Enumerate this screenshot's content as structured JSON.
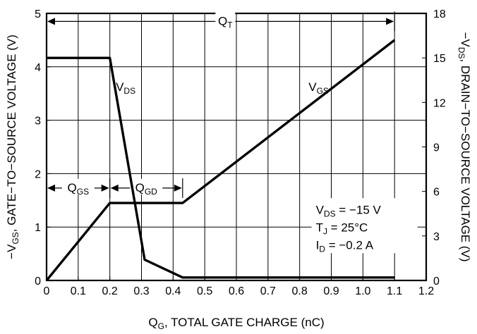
{
  "chart_data": {
    "type": "line",
    "xlabel": {
      "main": "Q",
      "sub": "G",
      "rest": ", TOTAL GATE CHARGE (nC)"
    },
    "ylabel_left": {
      "pre": "−V",
      "sub": "GS",
      "rest": ", GATE−TO−SOURCE VOLTAGE (V)"
    },
    "ylabel_right": {
      "pre": "−V",
      "sub": "DS",
      "rest": ", DRAIN−TO−SOURCE VOLTAGE (V)"
    },
    "xlim": [
      0,
      1.2
    ],
    "ylim_left": [
      0,
      5
    ],
    "ylim_right": [
      0,
      18
    ],
    "x_ticks": [
      "0",
      "0.1",
      "0.2",
      "0.3",
      "0.4",
      "0.5",
      "0.6",
      "0.7",
      "0.8",
      "0.9",
      "1.0",
      "1.1",
      "1.2"
    ],
    "x_tick_values": [
      0,
      0.1,
      0.2,
      0.3,
      0.4,
      0.5,
      0.6,
      0.7,
      0.8,
      0.9,
      1.0,
      1.1,
      1.2
    ],
    "y_left_ticks": [
      "0",
      "1",
      "2",
      "3",
      "4",
      "5"
    ],
    "y_left_tick_values": [
      0,
      1,
      2,
      3,
      4,
      5
    ],
    "y_right_ticks": [
      "0",
      "3",
      "6",
      "9",
      "12",
      "15",
      "18"
    ],
    "y_right_tick_values": [
      0,
      3,
      6,
      9,
      12,
      15,
      18
    ],
    "series": [
      {
        "name": "VGS",
        "axis": "left",
        "x": [
          0,
          0.2,
          0.43,
          1.1
        ],
        "y": [
          0,
          1.45,
          1.45,
          4.5
        ]
      },
      {
        "name": "VDS",
        "axis": "right",
        "x": [
          0,
          0.2,
          0.31,
          0.43,
          1.1
        ],
        "y": [
          15,
          15,
          1.4,
          0.2,
          0.2
        ]
      }
    ],
    "series_labels": [
      {
        "main": "V",
        "sub": "DS",
        "x": 0.25,
        "y_left": 3.55
      },
      {
        "main": "V",
        "sub": "GS",
        "x": 0.86,
        "y_left": 3.55
      }
    ],
    "dimensions": [
      {
        "main": "Q",
        "sub": "T",
        "x0": 0,
        "x1": 1.1,
        "y_left": 4.85,
        "label_x": 0.565
      },
      {
        "main": "Q",
        "sub": "GS",
        "x0": 0,
        "x1": 0.2,
        "y_left": 1.73,
        "label_x": 0.1
      },
      {
        "main": "Q",
        "sub": "GD",
        "x0": 0.2,
        "x1": 0.43,
        "y_left": 1.73,
        "label_x": 0.315
      }
    ],
    "conditions": [
      {
        "main": "V",
        "sub": "DS",
        "rest": " = −15 V"
      },
      {
        "main": "T",
        "sub": "J",
        "rest": " = 25°C"
      },
      {
        "main": "I",
        "sub": "D",
        "rest": " = −0.2 A"
      }
    ],
    "grid": true,
    "conditions_placement": "bottom-right"
  }
}
